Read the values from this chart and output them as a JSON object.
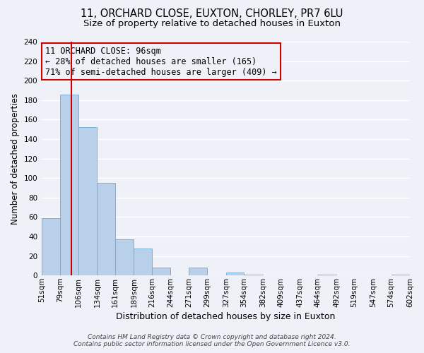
{
  "title": "11, ORCHARD CLOSE, EUXTON, CHORLEY, PR7 6LU",
  "subtitle": "Size of property relative to detached houses in Euxton",
  "xlabel": "Distribution of detached houses by size in Euxton",
  "ylabel": "Number of detached properties",
  "bin_labels": [
    "51sqm",
    "79sqm",
    "106sqm",
    "134sqm",
    "161sqm",
    "189sqm",
    "216sqm",
    "244sqm",
    "271sqm",
    "299sqm",
    "327sqm",
    "354sqm",
    "382sqm",
    "409sqm",
    "437sqm",
    "464sqm",
    "492sqm",
    "519sqm",
    "547sqm",
    "574sqm",
    "602sqm"
  ],
  "bar_values": [
    59,
    186,
    152,
    95,
    37,
    28,
    8,
    0,
    8,
    0,
    3,
    1,
    0,
    0,
    0,
    1,
    0,
    0,
    0,
    1,
    0
  ],
  "bin_edges": [
    51,
    79,
    106,
    134,
    161,
    189,
    216,
    244,
    271,
    299,
    327,
    354,
    382,
    409,
    437,
    464,
    492,
    519,
    547,
    574,
    602
  ],
  "bar_color": "#b8d0ea",
  "bar_edge_color": "#6aaad4",
  "ylim": [
    0,
    240
  ],
  "yticks": [
    0,
    20,
    40,
    60,
    80,
    100,
    120,
    140,
    160,
    180,
    200,
    220,
    240
  ],
  "vline_x": 96,
  "vline_color": "#cc0000",
  "annotation_title": "11 ORCHARD CLOSE: 96sqm",
  "annotation_line1": "← 28% of detached houses are smaller (165)",
  "annotation_line2": "71% of semi-detached houses are larger (409) →",
  "annotation_box_color": "#cc0000",
  "footer_line1": "Contains HM Land Registry data © Crown copyright and database right 2024.",
  "footer_line2": "Contains public sector information licensed under the Open Government Licence v3.0.",
  "bg_color": "#eef2f8",
  "grid_color": "#ffffff",
  "title_fontsize": 10.5,
  "subtitle_fontsize": 9.5,
  "xlabel_fontsize": 9,
  "ylabel_fontsize": 8.5,
  "tick_fontsize": 7.5,
  "footer_fontsize": 6.5,
  "annot_fontsize": 8.5
}
